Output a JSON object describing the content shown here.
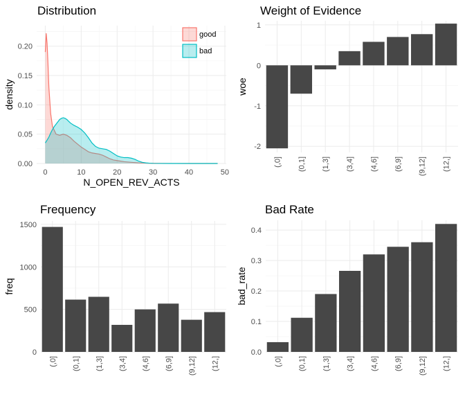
{
  "chart_data": [
    {
      "id": "distribution",
      "type": "area",
      "title": "Distribution",
      "xlabel": "N_OPEN_REV_ACTS",
      "ylabel": "density",
      "xlim": [
        -2.4,
        50.4
      ],
      "ylim": [
        0,
        0.235
      ],
      "x_ticks": [
        "0",
        "10",
        "20",
        "30",
        "40",
        "50"
      ],
      "y_ticks": [
        "0.00",
        "0.05",
        "0.10",
        "0.15",
        "0.20"
      ],
      "legend_position": "top-right",
      "grid": true,
      "series": [
        {
          "name": "good",
          "color": "#F8766D",
          "fill": "#F8766D",
          "x": [
            0,
            0.25,
            0.5,
            0.75,
            1,
            1.5,
            2,
            3,
            4,
            5,
            6,
            7,
            8,
            9,
            10,
            11,
            12,
            13,
            14,
            15,
            16,
            17,
            18,
            19,
            20,
            22,
            24,
            26,
            28,
            30,
            35,
            40,
            45,
            48
          ],
          "y": [
            0.19,
            0.222,
            0.205,
            0.17,
            0.13,
            0.085,
            0.063,
            0.05,
            0.048,
            0.05,
            0.048,
            0.044,
            0.038,
            0.033,
            0.028,
            0.024,
            0.02,
            0.018,
            0.017,
            0.016,
            0.014,
            0.011,
            0.008,
            0.006,
            0.005,
            0.003,
            0.002,
            0.001,
            0.0005,
            0.0003,
            0.0001,
            0.0,
            0.0,
            0.0
          ]
        },
        {
          "name": "bad",
          "color": "#00BFC4",
          "fill": "#00BFC4",
          "x": [
            0,
            0.5,
            1,
            1.5,
            2,
            2.5,
            3,
            3.5,
            4,
            4.5,
            5,
            5.5,
            6,
            6.5,
            7,
            8,
            9,
            10,
            11,
            12,
            13,
            14,
            15,
            16,
            17,
            18,
            19,
            20,
            21,
            22,
            23,
            24,
            25,
            26,
            27,
            28,
            29,
            30,
            32,
            35,
            40,
            45,
            48
          ],
          "y": [
            0.035,
            0.04,
            0.045,
            0.052,
            0.058,
            0.063,
            0.067,
            0.071,
            0.075,
            0.077,
            0.078,
            0.077,
            0.075,
            0.072,
            0.069,
            0.065,
            0.062,
            0.058,
            0.052,
            0.044,
            0.035,
            0.029,
            0.026,
            0.025,
            0.024,
            0.021,
            0.017,
            0.013,
            0.011,
            0.01,
            0.01,
            0.009,
            0.007,
            0.004,
            0.002,
            0.001,
            0.0005,
            0.0002,
            0.0001,
            0.0,
            0.0,
            0.0,
            0.0
          ]
        }
      ]
    },
    {
      "id": "woe",
      "type": "bar",
      "title": "Weight of Evidence",
      "xlabel": "",
      "ylabel": "woe",
      "categories": [
        "(,0]",
        "(0,1]",
        "(1,3]",
        "(3,4]",
        "(4,6]",
        "(6,9]",
        "(9,12]",
        "(12,]"
      ],
      "values": [
        -2.05,
        -0.7,
        -0.1,
        0.35,
        0.58,
        0.7,
        0.77,
        1.03
      ],
      "ylim": [
        -2.15,
        1.1
      ],
      "y_ticks": [
        -2,
        -1,
        0,
        1
      ],
      "bar_color": "#474747",
      "grid": true
    },
    {
      "id": "frequency",
      "type": "bar",
      "title": "Frequency",
      "xlabel": "",
      "ylabel": "freq",
      "categories": [
        "(,0]",
        "(0,1]",
        "(1,3]",
        "(3,4]",
        "(4,6]",
        "(6,9]",
        "(9,12]",
        "(12,]"
      ],
      "values": [
        1470,
        615,
        648,
        318,
        500,
        568,
        378,
        468
      ],
      "ylim": [
        0,
        1540
      ],
      "y_ticks": [
        0,
        500,
        1000,
        1500
      ],
      "bar_color": "#474747",
      "grid": true
    },
    {
      "id": "badrate",
      "type": "bar",
      "title": "Bad Rate",
      "xlabel": "",
      "ylabel": "bad_rate",
      "categories": [
        "(,0]",
        "(0,1]",
        "(1,3]",
        "(3,4]",
        "(4,6]",
        "(6,9]",
        "(9,12]",
        "(12,]"
      ],
      "values": [
        0.032,
        0.112,
        0.19,
        0.266,
        0.32,
        0.345,
        0.36,
        0.42
      ],
      "ylim": [
        0,
        0.432
      ],
      "y_ticks": [
        "0.0",
        "0.1",
        "0.2",
        "0.3",
        "0.4"
      ],
      "y_tick_values": [
        0,
        0.1,
        0.2,
        0.3,
        0.4
      ],
      "bar_color": "#474747",
      "grid": true
    }
  ]
}
